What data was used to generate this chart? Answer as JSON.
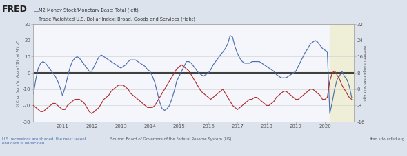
{
  "legend1": "M2 Money Stock/Monetary Base; Total (left)",
  "legend2": "Trade Weighted U.S. Dollar Index: Broad, Goods and Services (right)",
  "ylabel_left": "% Chg. from Yr. Ago of (Bil. of $Mil. of $)",
  "ylabel_right": "Percent Change from Year Ago",
  "ylim_left": [
    -30,
    30
  ],
  "ylim_right": [
    -16,
    32
  ],
  "xlim": [
    2010.0,
    2021.0
  ],
  "xticks": [
    2011,
    2012,
    2013,
    2014,
    2015,
    2016,
    2017,
    2018,
    2019,
    2020
  ],
  "yticks_left": [
    -30,
    -20,
    -10,
    0,
    10,
    20,
    30
  ],
  "yticks_right": [
    -16,
    -8,
    0,
    8,
    16,
    24,
    32
  ],
  "recession_start": 2020.17,
  "recession_end": 2021.0,
  "footer_left": "U.S. recessions are shaded; the most recent\nend date is undecided.",
  "footer_center": "Source: Board of Governors of the Federal Reserve System (US)",
  "footer_right": "fred.stlouisfed.org",
  "bg_color": "#dce3ed",
  "plot_bg_color": "#f4f6fb",
  "recession_color": "#efefd8",
  "blue_color": "#4f6faf",
  "red_color": "#b03030",
  "zero_line_color": "#404040",
  "blue_data_x": [
    2010.0,
    2010.083,
    2010.167,
    2010.25,
    2010.333,
    2010.417,
    2010.5,
    2010.583,
    2010.667,
    2010.75,
    2010.833,
    2010.917,
    2011.0,
    2011.083,
    2011.167,
    2011.25,
    2011.333,
    2011.417,
    2011.5,
    2011.583,
    2011.667,
    2011.75,
    2011.833,
    2011.917,
    2012.0,
    2012.083,
    2012.167,
    2012.25,
    2012.333,
    2012.417,
    2012.5,
    2012.583,
    2012.667,
    2012.75,
    2012.833,
    2012.917,
    2013.0,
    2013.083,
    2013.167,
    2013.25,
    2013.333,
    2013.417,
    2013.5,
    2013.583,
    2013.667,
    2013.75,
    2013.833,
    2013.917,
    2014.0,
    2014.083,
    2014.167,
    2014.25,
    2014.333,
    2014.417,
    2014.5,
    2014.583,
    2014.667,
    2014.75,
    2014.833,
    2014.917,
    2015.0,
    2015.083,
    2015.167,
    2015.25,
    2015.333,
    2015.417,
    2015.5,
    2015.583,
    2015.667,
    2015.75,
    2015.833,
    2015.917,
    2016.0,
    2016.083,
    2016.167,
    2016.25,
    2016.333,
    2016.417,
    2016.5,
    2016.583,
    2016.667,
    2016.75,
    2016.833,
    2016.917,
    2017.0,
    2017.083,
    2017.167,
    2017.25,
    2017.333,
    2017.417,
    2017.5,
    2017.583,
    2017.667,
    2017.75,
    2017.833,
    2017.917,
    2018.0,
    2018.083,
    2018.167,
    2018.25,
    2018.333,
    2018.417,
    2018.5,
    2018.583,
    2018.667,
    2018.75,
    2018.833,
    2018.917,
    2019.0,
    2019.083,
    2019.167,
    2019.25,
    2019.333,
    2019.417,
    2019.5,
    2019.583,
    2019.667,
    2019.75,
    2019.833,
    2019.917,
    2020.0,
    2020.083,
    2020.167,
    2020.25,
    2020.333,
    2020.417,
    2020.5,
    2020.583,
    2020.667,
    2020.75,
    2020.833,
    2020.917
  ],
  "blue_data_y": [
    -13,
    -4,
    3,
    6,
    7,
    6,
    4,
    2,
    0,
    -2,
    -5,
    -9,
    -14,
    -9,
    -3,
    3,
    7,
    9,
    10,
    9,
    7,
    5,
    3,
    1,
    1,
    4,
    7,
    10,
    11,
    10,
    9,
    8,
    7,
    6,
    5,
    4,
    3,
    4,
    5,
    7,
    8,
    8,
    8,
    7,
    6,
    5,
    4,
    2,
    1,
    -2,
    -6,
    -12,
    -18,
    -22,
    -23,
    -22,
    -20,
    -16,
    -11,
    -5,
    -2,
    1,
    4,
    7,
    7,
    6,
    4,
    2,
    0,
    -1,
    -2,
    -1,
    0,
    2,
    5,
    7,
    9,
    11,
    13,
    15,
    18,
    23,
    22,
    16,
    12,
    9,
    7,
    6,
    6,
    6,
    7,
    7,
    7,
    7,
    6,
    5,
    4,
    3,
    2,
    1,
    -1,
    -2,
    -3,
    -3,
    -3,
    -2,
    -1,
    0,
    1,
    4,
    7,
    10,
    13,
    15,
    18,
    19,
    20,
    19,
    17,
    15,
    14,
    13,
    -25,
    -18,
    -10,
    -4,
    -2,
    1,
    -2,
    -4,
    -8,
    -15
  ],
  "red_data_x": [
    2010.0,
    2010.083,
    2010.167,
    2010.25,
    2010.333,
    2010.417,
    2010.5,
    2010.583,
    2010.667,
    2010.75,
    2010.833,
    2010.917,
    2011.0,
    2011.083,
    2011.167,
    2011.25,
    2011.333,
    2011.417,
    2011.5,
    2011.583,
    2011.667,
    2011.75,
    2011.833,
    2011.917,
    2012.0,
    2012.083,
    2012.167,
    2012.25,
    2012.333,
    2012.417,
    2012.5,
    2012.583,
    2012.667,
    2012.75,
    2012.833,
    2012.917,
    2013.0,
    2013.083,
    2013.167,
    2013.25,
    2013.333,
    2013.417,
    2013.5,
    2013.583,
    2013.667,
    2013.75,
    2013.833,
    2013.917,
    2014.0,
    2014.083,
    2014.167,
    2014.25,
    2014.333,
    2014.417,
    2014.5,
    2014.583,
    2014.667,
    2014.75,
    2014.833,
    2014.917,
    2015.0,
    2015.083,
    2015.167,
    2015.25,
    2015.333,
    2015.417,
    2015.5,
    2015.583,
    2015.667,
    2015.75,
    2015.833,
    2015.917,
    2016.0,
    2016.083,
    2016.167,
    2016.25,
    2016.333,
    2016.417,
    2016.5,
    2016.583,
    2016.667,
    2016.75,
    2016.833,
    2016.917,
    2017.0,
    2017.083,
    2017.167,
    2017.25,
    2017.333,
    2017.417,
    2017.5,
    2017.583,
    2017.667,
    2017.75,
    2017.833,
    2017.917,
    2018.0,
    2018.083,
    2018.167,
    2018.25,
    2018.333,
    2018.417,
    2018.5,
    2018.583,
    2018.667,
    2018.75,
    2018.833,
    2018.917,
    2019.0,
    2019.083,
    2019.167,
    2019.25,
    2019.333,
    2019.417,
    2019.5,
    2019.583,
    2019.667,
    2019.75,
    2019.833,
    2019.917,
    2020.0,
    2020.083,
    2020.167,
    2020.25,
    2020.333,
    2020.417,
    2020.5,
    2020.583,
    2020.667,
    2020.75,
    2020.833,
    2020.917
  ],
  "red_data_y": [
    -8,
    -9,
    -10,
    -11,
    -11,
    -10,
    -9,
    -8,
    -7,
    -7,
    -8,
    -9,
    -10,
    -10,
    -8,
    -7,
    -6,
    -5,
    -5,
    -5,
    -6,
    -7,
    -9,
    -11,
    -12,
    -11,
    -10,
    -9,
    -7,
    -5,
    -4,
    -3,
    -1,
    0,
    1,
    2,
    2,
    2,
    1,
    0,
    -2,
    -3,
    -4,
    -5,
    -6,
    -7,
    -8,
    -9,
    -9,
    -9,
    -8,
    -6,
    -4,
    -2,
    0,
    2,
    4,
    6,
    8,
    10,
    11,
    12,
    11,
    10,
    9,
    7,
    5,
    3,
    1,
    -1,
    -2,
    -3,
    -4,
    -5,
    -4,
    -3,
    -2,
    -1,
    0,
    -2,
    -4,
    -6,
    -8,
    -9,
    -10,
    -9,
    -8,
    -7,
    -6,
    -5,
    -5,
    -4,
    -4,
    -5,
    -6,
    -7,
    -8,
    -8,
    -7,
    -6,
    -4,
    -3,
    -2,
    -1,
    -1,
    -2,
    -3,
    -4,
    -5,
    -5,
    -4,
    -3,
    -2,
    -1,
    0,
    0,
    -1,
    -2,
    -3,
    -5,
    -5,
    -4,
    4,
    8,
    9,
    7,
    5,
    2,
    0,
    -2,
    -4,
    -5
  ]
}
